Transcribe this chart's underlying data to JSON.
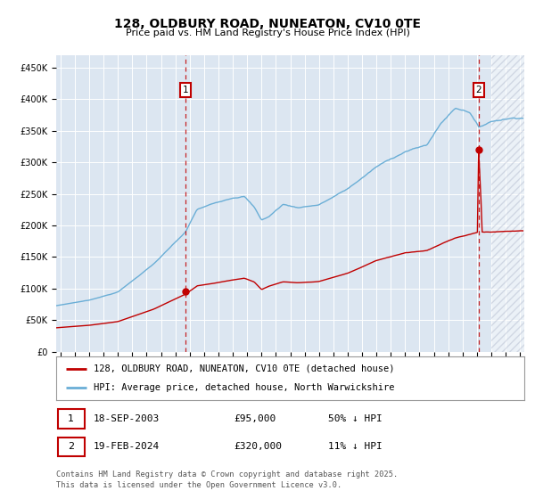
{
  "title": "128, OLDBURY ROAD, NUNEATON, CV10 0TE",
  "subtitle": "Price paid vs. HM Land Registry's House Price Index (HPI)",
  "hpi_color": "#6aaed6",
  "price_color": "#c00000",
  "bg_color": "#dce6f1",
  "plot_bg": "#ffffff",
  "legend_line1": "128, OLDBURY ROAD, NUNEATON, CV10 0TE (detached house)",
  "legend_line2": "HPI: Average price, detached house, North Warwickshire",
  "annotation1_date": "18-SEP-2003",
  "annotation1_price": "£95,000",
  "annotation1_hpi": "50% ↓ HPI",
  "annotation2_date": "19-FEB-2024",
  "annotation2_price": "£320,000",
  "annotation2_hpi": "11% ↓ HPI",
  "footnote": "Contains HM Land Registry data © Crown copyright and database right 2025.\nThis data is licensed under the Open Government Licence v3.0.",
  "sale1_year": 2003.72,
  "sale1_price": 95000,
  "sale2_year": 2024.13,
  "sale2_price": 320000,
  "hatch_start": 2025.0,
  "xlim_start": 1994.7,
  "xlim_end": 2027.3,
  "ylim": [
    0,
    470000
  ],
  "yticks": [
    0,
    50000,
    100000,
    150000,
    200000,
    250000,
    300000,
    350000,
    400000,
    450000
  ]
}
